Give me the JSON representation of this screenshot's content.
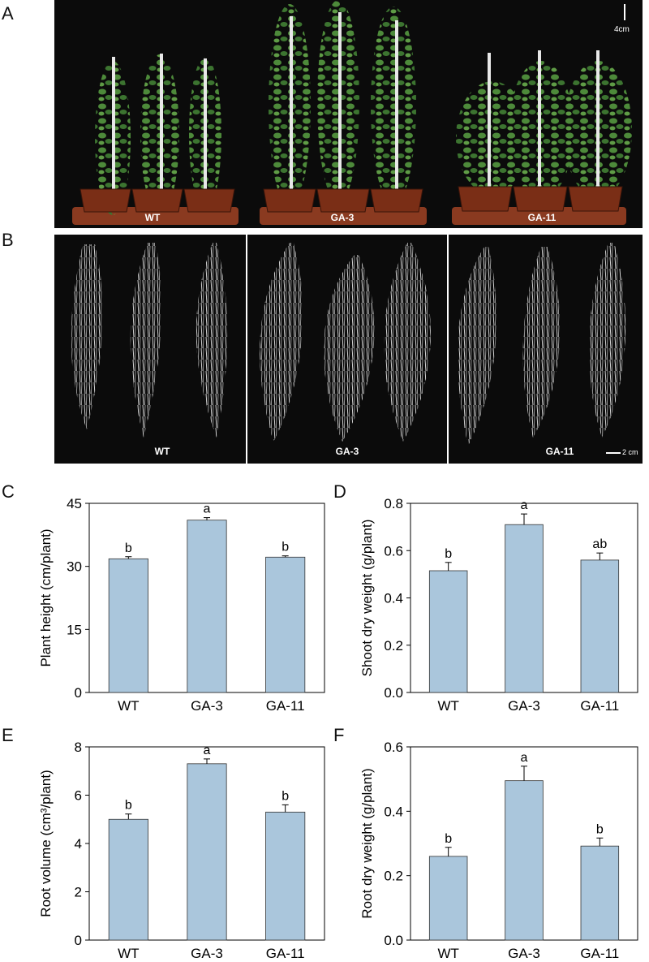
{
  "panels": {
    "a": {
      "letter": "A",
      "labels": [
        "WT",
        "GA-3",
        "GA-11"
      ],
      "scale": "4cm"
    },
    "b": {
      "letter": "B",
      "labels": [
        "WT",
        "GA-3",
        "GA-11"
      ],
      "scale": "2 cm"
    },
    "c": {
      "letter": "C"
    },
    "d": {
      "letter": "D"
    },
    "e": {
      "letter": "E"
    },
    "f": {
      "letter": "F"
    }
  },
  "chart_data": [
    {
      "id": "C",
      "type": "bar",
      "categories": [
        "WT",
        "GA-3",
        "GA-11"
      ],
      "values": [
        31.8,
        41.0,
        32.2
      ],
      "errors": [
        0.5,
        0.6,
        0.3
      ],
      "letters": [
        "b",
        "a",
        "b"
      ],
      "ylabel": "Plant height (cm/plant)",
      "ylim": [
        0,
        45
      ],
      "yticks": [
        "0",
        "15",
        "30",
        "45"
      ],
      "ytick_values": [
        0,
        15,
        30,
        45
      ],
      "bar_color": "#aac6dc"
    },
    {
      "id": "D",
      "type": "bar",
      "categories": [
        "WT",
        "GA-3",
        "GA-11"
      ],
      "values": [
        0.515,
        0.71,
        0.56
      ],
      "errors": [
        0.035,
        0.045,
        0.03
      ],
      "letters": [
        "b",
        "a",
        "ab"
      ],
      "ylabel": "Shoot dry weight (g/plant)",
      "ylim": [
        0,
        0.8
      ],
      "yticks": [
        "0.0",
        "0.2",
        "0.4",
        "0.6",
        "0.8"
      ],
      "ytick_values": [
        0,
        0.2,
        0.4,
        0.6,
        0.8
      ],
      "bar_color": "#aac6dc"
    },
    {
      "id": "E",
      "type": "bar",
      "categories": [
        "WT",
        "GA-3",
        "GA-11"
      ],
      "values": [
        5.0,
        7.3,
        5.3
      ],
      "errors": [
        0.22,
        0.2,
        0.3
      ],
      "letters": [
        "b",
        "a",
        "b"
      ],
      "ylabel": "Root volume (cm³/plant)",
      "ylim": [
        0,
        8
      ],
      "yticks": [
        "0",
        "2",
        "4",
        "6",
        "8"
      ],
      "ytick_values": [
        0,
        2,
        4,
        6,
        8
      ],
      "bar_color": "#aac6dc"
    },
    {
      "id": "F",
      "type": "bar",
      "categories": [
        "WT",
        "GA-3",
        "GA-11"
      ],
      "values": [
        0.26,
        0.495,
        0.292
      ],
      "errors": [
        0.028,
        0.045,
        0.025
      ],
      "letters": [
        "b",
        "a",
        "b"
      ],
      "ylabel": "Root dry weight (g/plant)",
      "ylim": [
        0,
        0.6
      ],
      "yticks": [
        "0.0",
        "0.2",
        "0.4",
        "0.6"
      ],
      "ytick_values": [
        0,
        0.2,
        0.4,
        0.6
      ],
      "bar_color": "#aac6dc"
    }
  ]
}
